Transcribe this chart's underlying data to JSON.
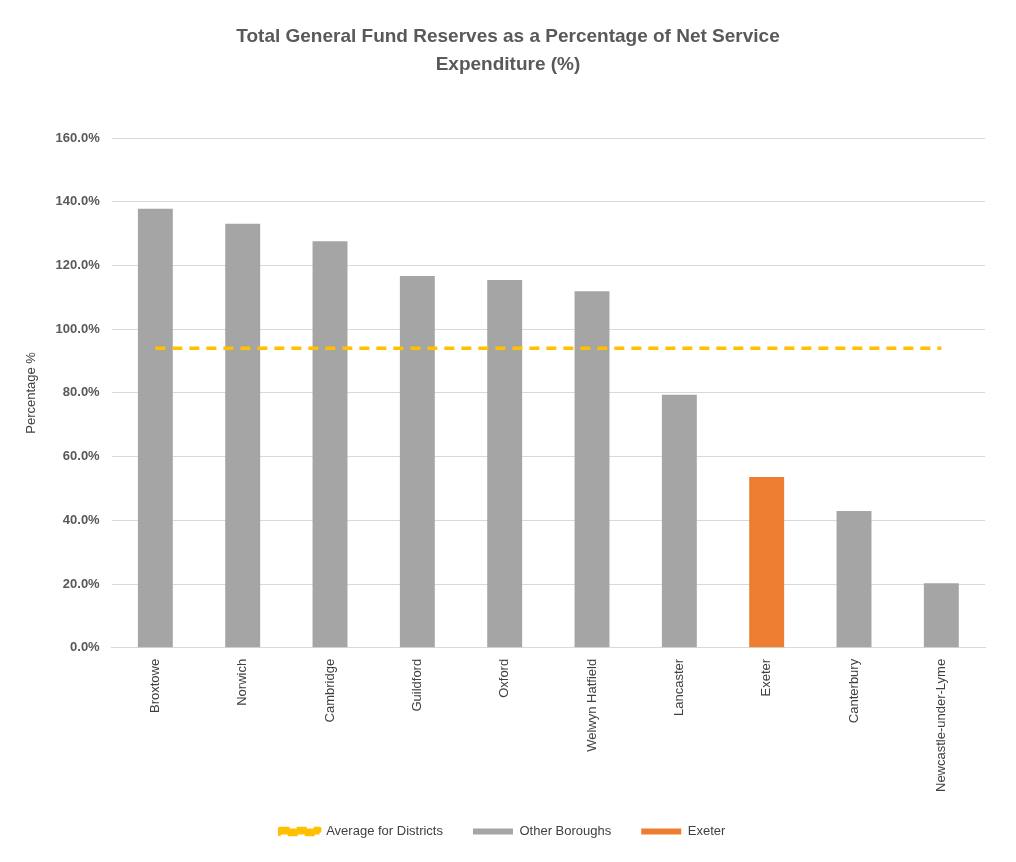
{
  "chart_data": {
    "type": "bar",
    "title": "Total General Fund Reserves as a Percentage of Net Service Expenditure (%)",
    "ylabel": "Percentage %",
    "categories": [
      "Broxtowe",
      "Norwich",
      "Cambridge",
      "Guildford",
      "Oxford",
      "Welwyn Hatfield",
      "Lancaster",
      "Exeter",
      "Canterbury",
      "Newcastle-under-Lyme"
    ],
    "series": [
      {
        "name": "Other Boroughs",
        "color": "#a5a5a5",
        "values": [
          137.8,
          133.1,
          127.6,
          116.7,
          115.4,
          111.9,
          79.4,
          null,
          42.9,
          20.3
        ]
      },
      {
        "name": "Exeter",
        "color": "#ed7d31",
        "values": [
          null,
          null,
          null,
          null,
          null,
          null,
          null,
          53.6,
          null,
          null
        ]
      },
      {
        "name": "Average for Districts",
        "type": "line",
        "color": "#ffc000",
        "line_style": "dashed",
        "marker": "none",
        "values": [
          94,
          94,
          94,
          94,
          94,
          94,
          94,
          94,
          94,
          94
        ]
      }
    ],
    "stacked": true,
    "ylim": [
      0,
      160
    ],
    "yticks": [
      {
        "value": 0,
        "label": "0.0%"
      },
      {
        "value": 20,
        "label": "20.0%"
      },
      {
        "value": 40,
        "label": "40.0%"
      },
      {
        "value": 60,
        "label": "60.0%"
      },
      {
        "value": 80,
        "label": "80.0%"
      },
      {
        "value": 100,
        "label": "100.0%"
      },
      {
        "value": 120,
        "label": "120.0%"
      },
      {
        "value": 140,
        "label": "140.0%"
      },
      {
        "value": 160,
        "label": "160.0%"
      }
    ],
    "grid": "y",
    "legend": "bottom"
  }
}
